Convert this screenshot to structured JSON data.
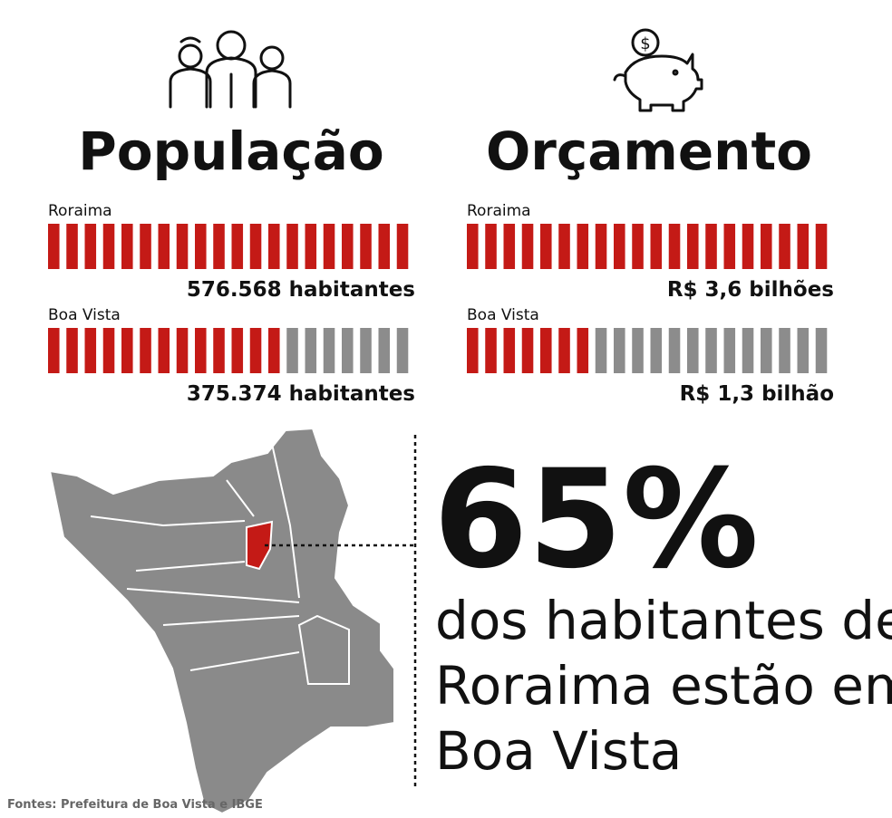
{
  "panels": [
    {
      "title": "População",
      "rows": [
        {
          "label": "Roraima",
          "value": 576568,
          "value_label": "576.568 habitantes"
        },
        {
          "label": "Boa Vista",
          "value": 375374,
          "value_label": "375.374 habitantes"
        }
      ]
    },
    {
      "title": "Orçamento",
      "rows": [
        {
          "label": "Roraima",
          "value": 3.6,
          "value_label": "R$ 3,6 bilhões"
        },
        {
          "label": "Boa Vista",
          "value": 1.3,
          "value_label": "R$ 1,3 bilhão"
        }
      ]
    }
  ],
  "highlight": {
    "value": 65,
    "value_label": "65%",
    "text": [
      "dos habitantes de",
      "Roraima estão em",
      "Boa Vista"
    ]
  },
  "source": "Fontes: Prefeitura de Boa Vista e IBGE",
  "colors": {
    "filled": "#c41a16",
    "empty": "#8c8c8c"
  }
}
